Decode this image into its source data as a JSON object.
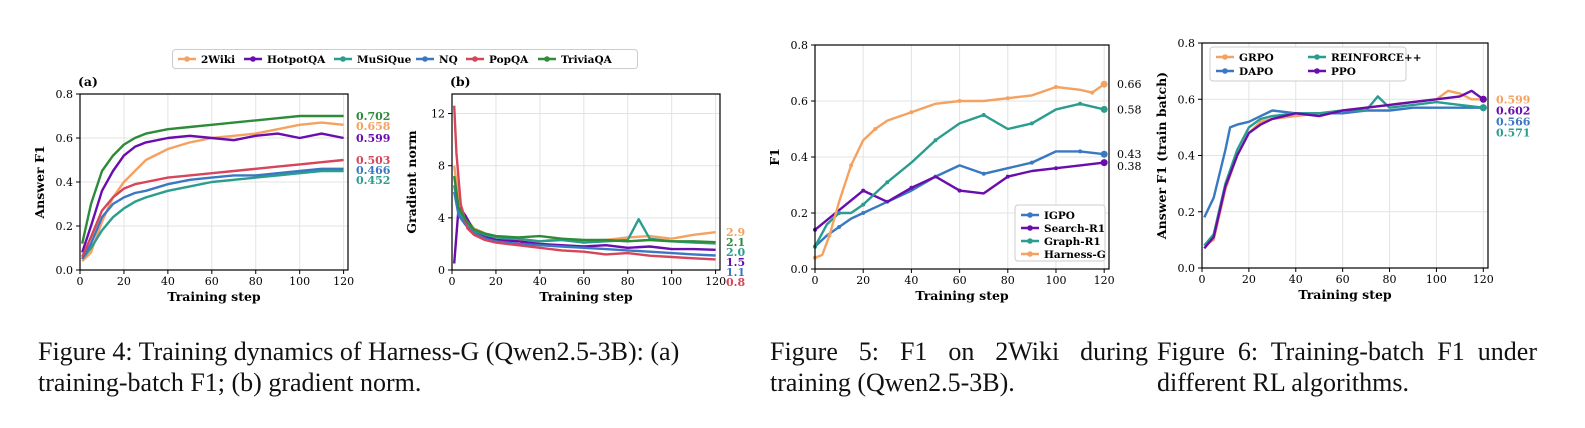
{
  "captions": {
    "fig4": "Figure 4: Training dynamics of Harness-G (Qwen2.5-3B): (a) training-batch F1; (b) gradient norm.",
    "fig5": "Figure 5: F1 on 2Wiki during training (Qwen2.5-3B).",
    "fig6": "Figure 6: Training-batch F1 under different RL algorithms."
  },
  "chart_data": [
    {
      "id": "fig4a",
      "type": "line",
      "title": "(a)",
      "xlabel": "Training step",
      "ylabel": "Answer F1",
      "xlim": [
        0,
        122
      ],
      "ylim": [
        0,
        0.8
      ],
      "xticks": [
        0,
        20,
        40,
        60,
        80,
        100,
        120
      ],
      "yticks": [
        0.0,
        0.2,
        0.4,
        0.6,
        0.8
      ],
      "grid": true,
      "legend": "top (shared across (a) and (b))",
      "series": [
        {
          "name": "2Wiki",
          "color": "#f4a261",
          "end_label": "0.658",
          "x": [
            1,
            5,
            10,
            15,
            20,
            25,
            30,
            40,
            50,
            60,
            70,
            80,
            90,
            100,
            110,
            120
          ],
          "y": [
            0.04,
            0.08,
            0.22,
            0.33,
            0.4,
            0.45,
            0.5,
            0.55,
            0.58,
            0.6,
            0.61,
            0.62,
            0.64,
            0.66,
            0.67,
            0.66
          ]
        },
        {
          "name": "HotpotQA",
          "color": "#6a0dad",
          "end_label": "0.599",
          "x": [
            1,
            5,
            10,
            15,
            20,
            25,
            30,
            40,
            50,
            60,
            70,
            80,
            90,
            100,
            110,
            120
          ],
          "y": [
            0.08,
            0.2,
            0.36,
            0.45,
            0.52,
            0.56,
            0.58,
            0.6,
            0.61,
            0.6,
            0.59,
            0.61,
            0.62,
            0.6,
            0.62,
            0.6
          ]
        },
        {
          "name": "MuSiQue",
          "color": "#2a9d8f",
          "end_label": "0.452",
          "x": [
            1,
            5,
            10,
            15,
            20,
            25,
            30,
            40,
            50,
            60,
            70,
            80,
            90,
            100,
            110,
            120
          ],
          "y": [
            0.05,
            0.1,
            0.18,
            0.24,
            0.28,
            0.31,
            0.33,
            0.36,
            0.38,
            0.4,
            0.41,
            0.42,
            0.43,
            0.44,
            0.45,
            0.45
          ]
        },
        {
          "name": "NQ",
          "color": "#3a78c2",
          "end_label": "0.466",
          "x": [
            1,
            5,
            10,
            15,
            20,
            25,
            30,
            40,
            50,
            60,
            70,
            80,
            90,
            100,
            110,
            120
          ],
          "y": [
            0.05,
            0.12,
            0.24,
            0.3,
            0.33,
            0.35,
            0.36,
            0.39,
            0.41,
            0.42,
            0.43,
            0.43,
            0.44,
            0.45,
            0.46,
            0.46
          ]
        },
        {
          "name": "PopQA",
          "color": "#d6455a",
          "end_label": "0.503",
          "x": [
            1,
            5,
            10,
            15,
            20,
            25,
            30,
            40,
            50,
            60,
            70,
            80,
            90,
            100,
            110,
            120
          ],
          "y": [
            0.06,
            0.15,
            0.27,
            0.33,
            0.37,
            0.39,
            0.4,
            0.42,
            0.43,
            0.44,
            0.45,
            0.46,
            0.47,
            0.48,
            0.49,
            0.5
          ]
        },
        {
          "name": "TriviaQA",
          "color": "#2e8b3a",
          "end_label": "0.702",
          "x": [
            1,
            5,
            10,
            15,
            20,
            25,
            30,
            40,
            50,
            60,
            70,
            80,
            90,
            100,
            110,
            120
          ],
          "y": [
            0.12,
            0.3,
            0.45,
            0.52,
            0.57,
            0.6,
            0.62,
            0.64,
            0.65,
            0.66,
            0.67,
            0.68,
            0.69,
            0.7,
            0.7,
            0.7
          ]
        }
      ]
    },
    {
      "id": "fig4b",
      "type": "line",
      "title": "(b)",
      "xlabel": "Training step",
      "ylabel": "Gradient norm",
      "xlim": [
        0,
        122
      ],
      "ylim": [
        0,
        13.5
      ],
      "xticks": [
        0,
        20,
        40,
        60,
        80,
        100,
        120
      ],
      "yticks": [
        0,
        4,
        8,
        12
      ],
      "grid": true,
      "series": [
        {
          "name": "2Wiki",
          "color": "#f4a261",
          "end_label": "2.93",
          "x": [
            1,
            3,
            6,
            10,
            15,
            20,
            30,
            40,
            50,
            60,
            70,
            80,
            90,
            100,
            110,
            120
          ],
          "y": [
            8.0,
            5.5,
            4.0,
            3.2,
            2.8,
            2.5,
            2.3,
            2.2,
            2.4,
            2.1,
            2.3,
            2.5,
            2.6,
            2.4,
            2.7,
            2.9
          ]
        },
        {
          "name": "HotpotQA",
          "color": "#6a0dad",
          "end_label": "1.55",
          "x": [
            1,
            3,
            6,
            10,
            15,
            20,
            30,
            40,
            50,
            60,
            70,
            80,
            90,
            100,
            110,
            120
          ],
          "y": [
            0.5,
            4.8,
            4.2,
            3.0,
            2.6,
            2.3,
            2.2,
            2.0,
            1.9,
            1.8,
            1.9,
            1.7,
            1.8,
            1.6,
            1.6,
            1.55
          ]
        },
        {
          "name": "MuSiQue",
          "color": "#2a9d8f",
          "end_label": "2.04",
          "x": [
            1,
            3,
            6,
            10,
            15,
            20,
            30,
            40,
            50,
            60,
            70,
            80,
            85,
            90,
            100,
            110,
            120
          ],
          "y": [
            6.5,
            4.5,
            3.8,
            3.0,
            2.7,
            2.5,
            2.4,
            2.2,
            2.3,
            2.1,
            2.2,
            2.3,
            3.9,
            2.4,
            2.2,
            2.1,
            2.04
          ]
        },
        {
          "name": "NQ",
          "color": "#3a78c2",
          "end_label": "1.11",
          "x": [
            1,
            3,
            6,
            10,
            15,
            20,
            30,
            40,
            50,
            60,
            70,
            80,
            90,
            100,
            110,
            120
          ],
          "y": [
            6.0,
            4.2,
            3.5,
            2.8,
            2.4,
            2.2,
            2.0,
            1.9,
            1.8,
            1.7,
            1.6,
            1.5,
            1.4,
            1.3,
            1.2,
            1.11
          ]
        },
        {
          "name": "PopQA",
          "color": "#d6455a",
          "end_label": "0.81",
          "x": [
            1,
            2,
            4,
            7,
            10,
            15,
            20,
            30,
            40,
            50,
            60,
            70,
            80,
            90,
            100,
            110,
            120
          ],
          "y": [
            12.6,
            9.0,
            5.0,
            3.2,
            2.7,
            2.3,
            2.1,
            1.9,
            1.7,
            1.5,
            1.4,
            1.2,
            1.3,
            1.1,
            1.0,
            0.9,
            0.81
          ]
        },
        {
          "name": "TriviaQA",
          "color": "#2e8b3a",
          "end_label": "2.13",
          "x": [
            1,
            3,
            6,
            10,
            15,
            20,
            30,
            40,
            50,
            60,
            70,
            80,
            90,
            100,
            110,
            120
          ],
          "y": [
            7.2,
            4.8,
            3.9,
            3.1,
            2.8,
            2.6,
            2.5,
            2.6,
            2.4,
            2.3,
            2.3,
            2.2,
            2.3,
            2.2,
            2.2,
            2.13
          ]
        }
      ]
    },
    {
      "id": "fig5",
      "type": "line",
      "title": "",
      "xlabel": "Training step",
      "ylabel": "F1",
      "xlim": [
        0,
        122
      ],
      "ylim": [
        0,
        0.8
      ],
      "xticks": [
        0,
        20,
        40,
        60,
        80,
        100,
        120
      ],
      "yticks": [
        0.0,
        0.2,
        0.4,
        0.6,
        0.8
      ],
      "grid": true,
      "legend": "bottom-right",
      "series": [
        {
          "name": "IGPO",
          "color": "#3a78c2",
          "end_label": "0.43",
          "x": [
            0,
            5,
            10,
            15,
            20,
            25,
            30,
            40,
            50,
            60,
            70,
            80,
            90,
            100,
            110,
            120
          ],
          "y": [
            0.08,
            0.12,
            0.15,
            0.18,
            0.2,
            0.22,
            0.24,
            0.28,
            0.33,
            0.37,
            0.34,
            0.36,
            0.38,
            0.42,
            0.42,
            0.41
          ]
        },
        {
          "name": "Search-R1",
          "color": "#6a0dad",
          "end_label": "0.38",
          "x": [
            0,
            10,
            20,
            30,
            40,
            50,
            60,
            70,
            80,
            90,
            100,
            110,
            120
          ],
          "y": [
            0.14,
            0.21,
            0.28,
            0.24,
            0.29,
            0.33,
            0.28,
            0.27,
            0.33,
            0.35,
            0.36,
            0.37,
            0.38
          ]
        },
        {
          "name": "Graph-R1",
          "color": "#2a9d8f",
          "end_label": "0.58",
          "x": [
            0,
            5,
            10,
            15,
            20,
            25,
            30,
            40,
            50,
            60,
            70,
            80,
            90,
            100,
            110,
            120
          ],
          "y": [
            0.08,
            0.16,
            0.2,
            0.2,
            0.23,
            0.27,
            0.31,
            0.38,
            0.46,
            0.52,
            0.55,
            0.5,
            0.52,
            0.57,
            0.59,
            0.57
          ]
        },
        {
          "name": "Harness-G",
          "color": "#f4a261",
          "end_label": "0.66",
          "x": [
            0,
            3,
            6,
            10,
            15,
            20,
            25,
            30,
            40,
            50,
            60,
            70,
            80,
            90,
            100,
            110,
            115,
            120
          ],
          "y": [
            0.04,
            0.05,
            0.12,
            0.24,
            0.37,
            0.46,
            0.5,
            0.53,
            0.56,
            0.59,
            0.6,
            0.6,
            0.61,
            0.62,
            0.65,
            0.64,
            0.63,
            0.66
          ]
        }
      ]
    },
    {
      "id": "fig6",
      "type": "line",
      "title": "",
      "xlabel": "Training step",
      "ylabel": "Answer F1 (train batch)",
      "xlim": [
        0,
        122
      ],
      "ylim": [
        0,
        0.8
      ],
      "xticks": [
        0,
        20,
        40,
        60,
        80,
        100,
        120
      ],
      "yticks": [
        0.0,
        0.2,
        0.4,
        0.6,
        0.8
      ],
      "grid": true,
      "legend": "top-left",
      "series": [
        {
          "name": "GRPO",
          "color": "#f4a261",
          "end_label": "0.599",
          "x": [
            1,
            5,
            10,
            15,
            20,
            25,
            30,
            40,
            50,
            60,
            70,
            80,
            90,
            100,
            105,
            110,
            115,
            120
          ],
          "y": [
            0.08,
            0.1,
            0.28,
            0.4,
            0.48,
            0.52,
            0.53,
            0.54,
            0.55,
            0.56,
            0.57,
            0.58,
            0.59,
            0.6,
            0.63,
            0.62,
            0.6,
            0.6
          ]
        },
        {
          "name": "DAPO",
          "color": "#3a78c2",
          "end_label": "0.566",
          "x": [
            1,
            5,
            10,
            12,
            15,
            20,
            25,
            30,
            40,
            50,
            60,
            70,
            80,
            90,
            100,
            110,
            120
          ],
          "y": [
            0.18,
            0.25,
            0.42,
            0.5,
            0.51,
            0.52,
            0.54,
            0.56,
            0.55,
            0.55,
            0.55,
            0.56,
            0.56,
            0.57,
            0.57,
            0.57,
            0.57
          ]
        },
        {
          "name": "REINFORCE++",
          "color": "#2a9d8f",
          "end_label": "0.571",
          "x": [
            1,
            5,
            10,
            15,
            20,
            25,
            30,
            40,
            50,
            60,
            70,
            75,
            80,
            90,
            100,
            110,
            120
          ],
          "y": [
            0.08,
            0.12,
            0.3,
            0.42,
            0.5,
            0.53,
            0.54,
            0.55,
            0.55,
            0.56,
            0.56,
            0.61,
            0.57,
            0.58,
            0.59,
            0.58,
            0.57
          ]
        },
        {
          "name": "PPO",
          "color": "#6a0dad",
          "end_label": "0.602",
          "x": [
            1,
            5,
            10,
            15,
            20,
            25,
            30,
            40,
            50,
            60,
            70,
            80,
            90,
            100,
            110,
            115,
            120
          ],
          "y": [
            0.07,
            0.11,
            0.29,
            0.4,
            0.48,
            0.51,
            0.53,
            0.55,
            0.54,
            0.56,
            0.57,
            0.58,
            0.59,
            0.6,
            0.61,
            0.63,
            0.6
          ]
        }
      ]
    }
  ],
  "legend_shared": [
    "2Wiki",
    "HotpotQA",
    "MuSiQue",
    "NQ",
    "PopQA",
    "TriviaQA"
  ]
}
